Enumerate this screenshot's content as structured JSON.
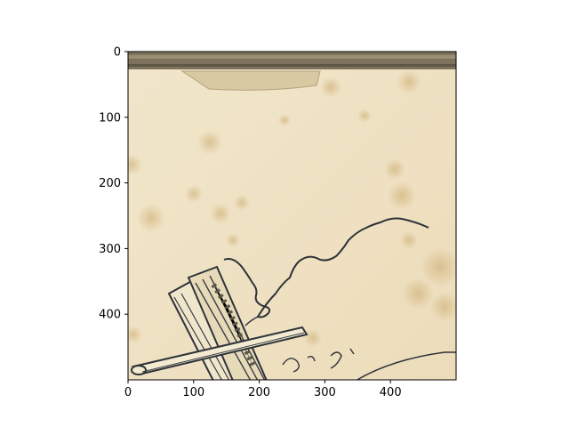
{
  "figure": {
    "image_description": "aged paper with brown foxing stains, a torn strip at the top, and a pencil sketch of crossed wooden posts with a curling vine",
    "colors": {
      "paper": "#efe3c6",
      "paper_light": "#f4ead2",
      "stain": "#c9a86a",
      "strip": "#7d735c",
      "ink": "#2e3238",
      "axes": "#000000"
    }
  },
  "chart_data": {
    "type": "image",
    "xlim": [
      0,
      500
    ],
    "ylim": [
      500,
      0
    ],
    "x_ticks": [
      "0",
      "100",
      "200",
      "300",
      "400"
    ],
    "y_ticks": [
      "0",
      "100",
      "200",
      "300",
      "400"
    ],
    "grid": false
  }
}
